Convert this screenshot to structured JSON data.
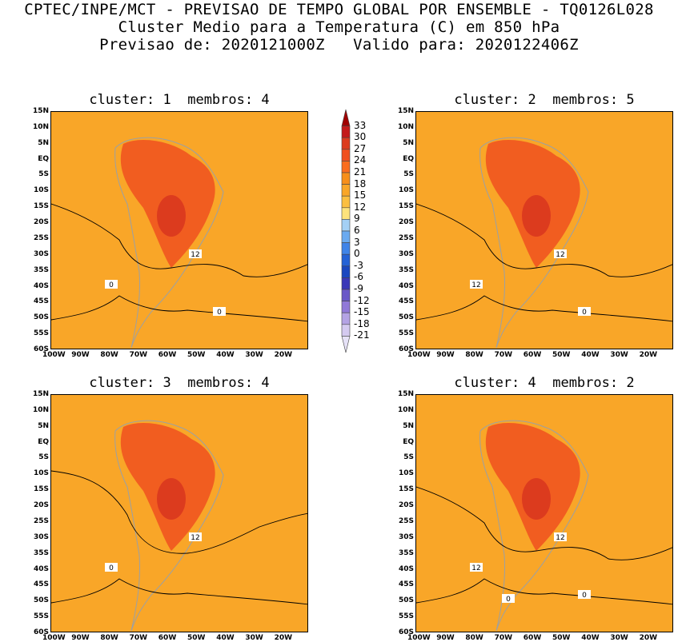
{
  "header": {
    "line1": "CPTEC/INPE/MCT - PREVISAO DE TEMPO GLOBAL POR ENSEMBLE - TQ0126L028",
    "line2": "Cluster Medio para a Temperatura (C) em 850 hPa",
    "line3": "Previsao de: 2020121000Z   Valido para: 2020122406Z"
  },
  "panels": [
    {
      "title": "cluster: 1  membros: 4",
      "contour_labels": [
        "12",
        "0",
        "0"
      ]
    },
    {
      "title": "cluster: 2  membros: 5",
      "contour_labels": [
        "12",
        "12",
        "0"
      ]
    },
    {
      "title": "cluster: 3  membros: 4",
      "contour_labels": [
        "12",
        "0"
      ]
    },
    {
      "title": "cluster: 4  membros: 2",
      "contour_labels": [
        "12",
        "12",
        "0",
        "0"
      ]
    }
  ],
  "lat_ticks": [
    "15N",
    "10N",
    "5N",
    "EQ",
    "5S",
    "10S",
    "15S",
    "20S",
    "25S",
    "30S",
    "35S",
    "40S",
    "45S",
    "50S",
    "55S",
    "60S"
  ],
  "lon_ticks": [
    "100W",
    "90W",
    "80W",
    "70W",
    "60W",
    "50W",
    "40W",
    "30W",
    "20W"
  ],
  "colorbar": {
    "labels": [
      "33",
      "30",
      "27",
      "24",
      "21",
      "18",
      "15",
      "12",
      "9",
      "6",
      "3",
      "0",
      "-3",
      "-6",
      "-9",
      "-12",
      "-15",
      "-18",
      "-21"
    ],
    "colors": [
      "#a00000",
      "#c41a1a",
      "#dc3b1e",
      "#f0501e",
      "#fa6d1e",
      "#f78f1a",
      "#f9a628",
      "#fbbf40",
      "#fde37c",
      "#a4d0f5",
      "#6aaaf0",
      "#3f84e8",
      "#2462d6",
      "#1a47c0",
      "#3a38b8",
      "#6a58c8",
      "#9179d8",
      "#b4a3e4",
      "#d4caf0",
      "#e6e2f7"
    ]
  }
}
